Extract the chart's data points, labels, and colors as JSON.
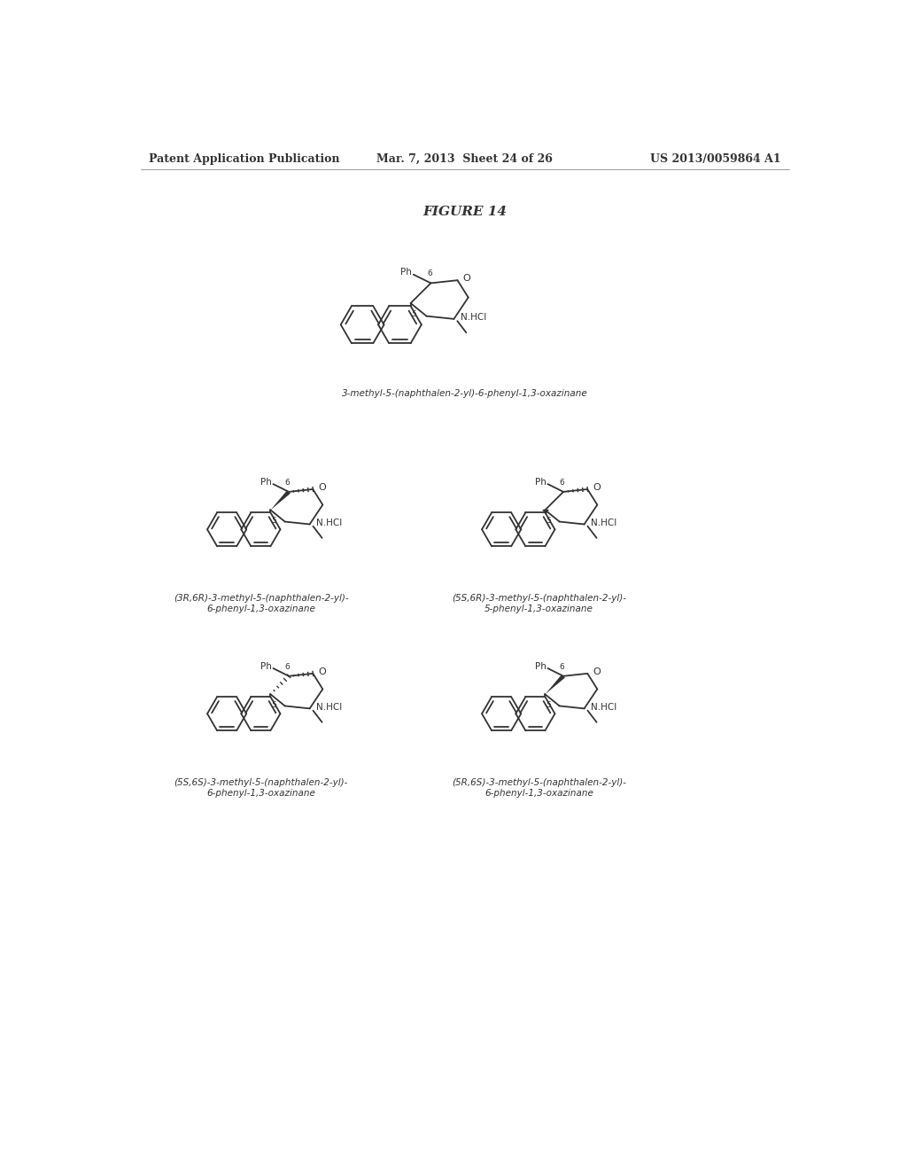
{
  "background_color": "#ffffff",
  "header_left": "Patent Application Publication",
  "header_center": "Mar. 7, 2013  Sheet 24 of 26",
  "header_right": "US 2013/0059864 A1",
  "figure_title": "FIGURE 14",
  "compound1_name": "3-methyl-5-(naphthalen-2-yl)-6-phenyl-1,3-oxazinane",
  "compound2_name": "(3R,6R)-3-methyl-5-(naphthalen-2-yl)-\n6-phenyl-1,3-oxazinane",
  "compound3_name": "(5S,6R)-3-methyl-5-(naphthalen-2-yl)-\n5-phenyl-1,3-oxazinane",
  "compound4_name": "(5S,6S)-3-methyl-5-(naphthalen-2-yl)-\n6-phenyl-1,3-oxazinane",
  "compound5_name": "(5R,6S)-3-methyl-5-(naphthalen-2-yl)-\n6-phenyl-1,3-oxazinane",
  "text_color": "#333333",
  "line_color": "#333333",
  "header_fontsize": 9,
  "title_fontsize": 11,
  "compound_name_fontsize": 7.5,
  "label_fontsize": 7.5
}
